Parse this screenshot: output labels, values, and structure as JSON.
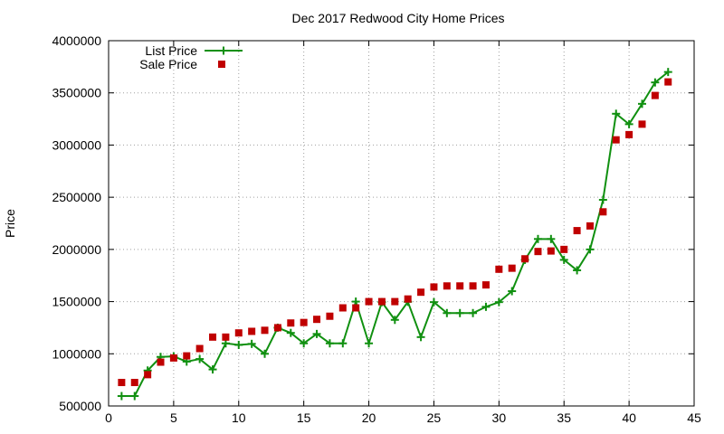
{
  "chart_data": {
    "type": "line",
    "title": "Dec 2017 Redwood City Home Prices",
    "xlabel": "",
    "ylabel": "Price",
    "xlim": [
      0,
      45
    ],
    "ylim": [
      500000,
      4000000
    ],
    "x_ticks": [
      0,
      5,
      10,
      15,
      20,
      25,
      30,
      35,
      40,
      45
    ],
    "y_ticks": [
      500000,
      1000000,
      1500000,
      2000000,
      2500000,
      3000000,
      3500000,
      4000000
    ],
    "grid": true,
    "legend_position": "top-left",
    "series": [
      {
        "name": "List Price",
        "style": "line+marker",
        "color": "#109010",
        "marker": "plus",
        "x": [
          1,
          2,
          3,
          4,
          5,
          6,
          7,
          8,
          9,
          10,
          11,
          12,
          13,
          14,
          15,
          16,
          17,
          18,
          19,
          20,
          21,
          22,
          23,
          24,
          25,
          26,
          27,
          28,
          29,
          30,
          31,
          32,
          33,
          34,
          35,
          36,
          37,
          38,
          39,
          40,
          41,
          42,
          43
        ],
        "values": [
          595000,
          595000,
          840000,
          970000,
          975000,
          925000,
          950000,
          850000,
          1100000,
          1085000,
          1095000,
          1000000,
          1250000,
          1200000,
          1100000,
          1190000,
          1100000,
          1100000,
          1500000,
          1100000,
          1495000,
          1325000,
          1498000,
          1160000,
          1495000,
          1390000,
          1390000,
          1390000,
          1450000,
          1495000,
          1600000,
          1900000,
          2100000,
          2100000,
          1900000,
          1800000,
          2000000,
          2475000,
          3300000,
          3200000,
          3395000,
          3600000,
          3700000
        ]
      },
      {
        "name": "Sale Price",
        "style": "marker",
        "color": "#c00000",
        "marker": "square",
        "x": [
          1,
          2,
          3,
          4,
          5,
          6,
          7,
          8,
          9,
          10,
          11,
          12,
          13,
          14,
          15,
          16,
          17,
          18,
          19,
          20,
          21,
          22,
          23,
          24,
          25,
          26,
          27,
          28,
          29,
          30,
          31,
          32,
          33,
          34,
          35,
          36,
          37,
          38,
          39,
          40,
          41,
          42,
          43
        ],
        "values": [
          725000,
          725000,
          800000,
          920000,
          960000,
          980000,
          1050000,
          1160000,
          1160000,
          1200000,
          1215000,
          1225000,
          1250000,
          1295000,
          1300000,
          1330000,
          1360000,
          1440000,
          1440000,
          1500000,
          1500000,
          1500000,
          1525000,
          1590000,
          1640000,
          1650000,
          1650000,
          1650000,
          1660000,
          1810000,
          1820000,
          1910000,
          1980000,
          1985000,
          2000000,
          2180000,
          2225000,
          2360000,
          3050000,
          3100000,
          3200000,
          3475000,
          3605000
        ]
      }
    ]
  }
}
